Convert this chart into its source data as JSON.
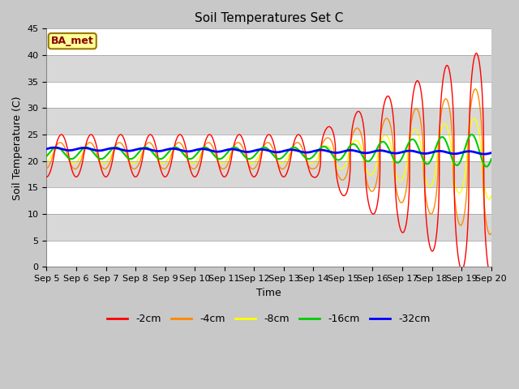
{
  "title": "Soil Temperatures Set C",
  "xlabel": "Time",
  "ylabel": "Soil Temperature (C)",
  "ylim": [
    0,
    45
  ],
  "xlim": [
    0,
    15
  ],
  "x_tick_labels": [
    "Sep 5",
    "Sep 6",
    "Sep 7",
    "Sep 8",
    "Sep 9",
    "Sep 10",
    "Sep 11",
    "Sep 12",
    "Sep 13",
    "Sep 14",
    "Sep 15",
    "Sep 16",
    "Sep 17",
    "Sep 18",
    "Sep 19",
    "Sep 20"
  ],
  "legend_labels": [
    "-2cm",
    "-4cm",
    "-8cm",
    "-16cm",
    "-32cm"
  ],
  "legend_colors": [
    "#ff0000",
    "#ff8800",
    "#ffff00",
    "#00cc00",
    "#0000ff"
  ],
  "label_box_text": "BA_met",
  "plot_bg_color": "#e8e8e8",
  "title_fontsize": 11,
  "axis_fontsize": 9,
  "tick_fontsize": 8
}
